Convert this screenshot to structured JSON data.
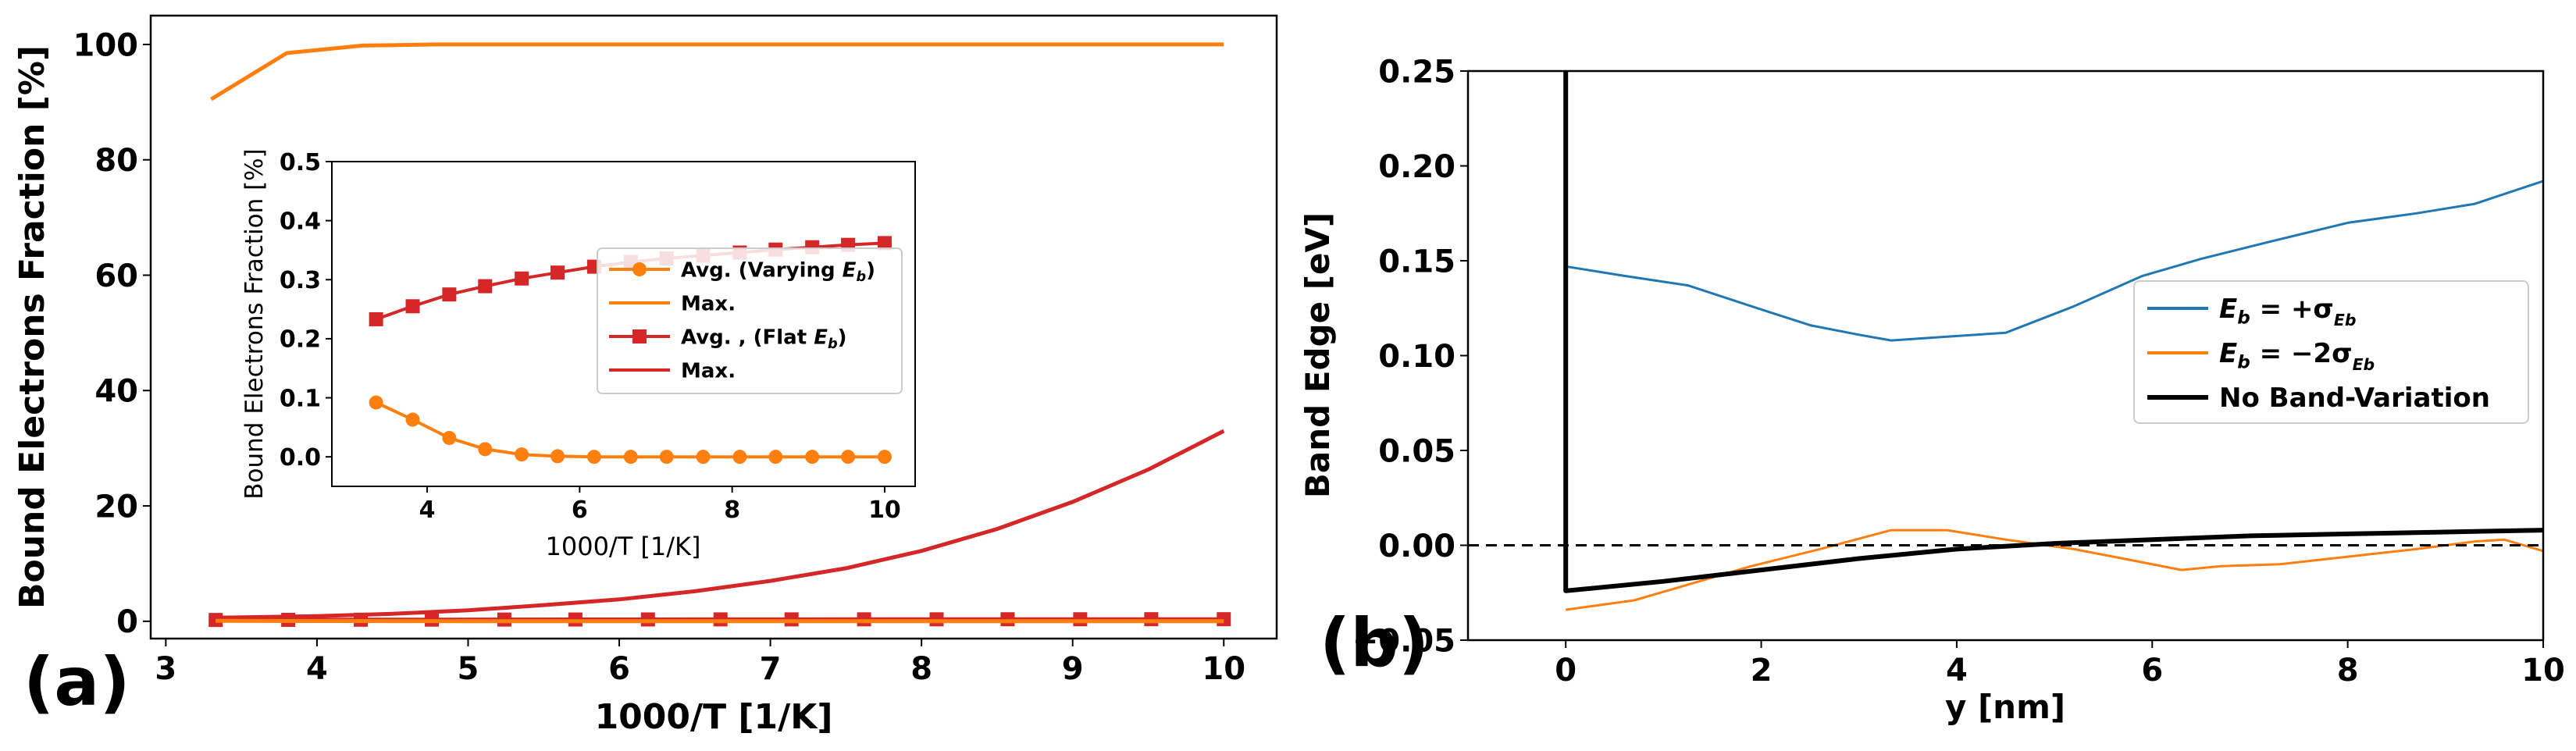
{
  "chart_data": [
    {
      "panel_label": "(a)",
      "type": "line",
      "title": "",
      "xlabel": "1000/T [1/K]",
      "ylabel": "Bound Electrons Fraction [%]",
      "xlim": [
        2.9,
        10.35
      ],
      "ylim": [
        -3,
        105
      ],
      "xticks": [
        "3",
        "4",
        "5",
        "6",
        "7",
        "8",
        "9",
        "10"
      ],
      "yticks": [
        "0",
        "20",
        "40",
        "60",
        "80",
        "100"
      ],
      "colors": {
        "orange": "#ff7f0e",
        "red": "#d62728"
      },
      "series": [
        {
          "name": "Max. (Varying)",
          "color": "#ff7f0e",
          "marker": "none",
          "x": [
            3.3,
            3.8,
            4.3,
            4.8,
            5.3,
            5.8,
            6.3,
            6.8,
            7.3,
            7.8,
            8.3,
            8.8,
            9.3,
            9.8,
            10.0
          ],
          "y": [
            90.5,
            98.5,
            99.8,
            100,
            100,
            100,
            100,
            100,
            100,
            100,
            100,
            100,
            100,
            100,
            100
          ]
        },
        {
          "name": "Max. (Flat)",
          "color": "#d62728",
          "marker": "none",
          "x": [
            3.3,
            4.0,
            4.5,
            5.0,
            5.5,
            6.0,
            6.5,
            7.0,
            7.5,
            8.0,
            8.5,
            9.0,
            9.5,
            10.0
          ],
          "y": [
            0.6,
            0.9,
            1.3,
            1.9,
            2.8,
            3.8,
            5.2,
            7.0,
            9.2,
            12.2,
            16.0,
            20.7,
            26.3,
            33.0
          ]
        },
        {
          "name": "Avg. (Flat)",
          "color": "#d62728",
          "marker": "square",
          "x": [
            3.33,
            3.81,
            4.29,
            4.76,
            5.24,
            5.71,
            6.19,
            6.67,
            7.14,
            7.62,
            8.1,
            8.57,
            9.05,
            9.52,
            10.0
          ],
          "y": [
            0.23,
            0.25,
            0.27,
            0.29,
            0.3,
            0.31,
            0.32,
            0.33,
            0.33,
            0.34,
            0.34,
            0.35,
            0.35,
            0.36,
            0.36
          ]
        },
        {
          "name": "Avg. (Varying)",
          "color": "#ff7f0e",
          "marker": "none",
          "x": [
            3.33,
            4.0,
            5.0,
            6.0,
            7.0,
            8.0,
            9.0,
            10.0
          ],
          "y": [
            0.09,
            0.05,
            0.01,
            0.0,
            0.0,
            0.0,
            0.0,
            0.0
          ]
        }
      ],
      "inset": {
        "type": "line",
        "xlabel": "1000/T [1/K]",
        "ylabel": "Bound Electrons Fraction [%]",
        "xlim": [
          2.75,
          10.4
        ],
        "ylim": [
          -0.05,
          0.5
        ],
        "xticks": [
          "4",
          "6",
          "8",
          "10"
        ],
        "yticks": [
          "0.0",
          "0.1",
          "0.2",
          "0.3",
          "0.4",
          "0.5"
        ],
        "legend_location": "center-right",
        "legend": [
          {
            "label": "Avg.  (Varying ",
            "sym": "E",
            "sub": "b",
            "tail": ")",
            "color": "#ff7f0e",
            "marker": "circle"
          },
          {
            "label": "Max.",
            "sym": "",
            "sub": "",
            "tail": "",
            "color": "#ff7f0e",
            "marker": "none"
          },
          {
            "label": "Avg. , (Flat ",
            "sym": "E",
            "sub": "b",
            "tail": ")",
            "color": "#d62728",
            "marker": "square"
          },
          {
            "label": "Max.",
            "sym": "",
            "sub": "",
            "tail": "",
            "color": "#d62728",
            "marker": "none"
          }
        ],
        "series": [
          {
            "name": "Avg. (Varying Eb)",
            "color": "#ff7f0e",
            "marker": "circle",
            "x": [
              3.33,
              3.81,
              4.29,
              4.76,
              5.24,
              5.71,
              6.19,
              6.67,
              7.14,
              7.62,
              8.1,
              8.57,
              9.05,
              9.52,
              10.0
            ],
            "y": [
              0.092,
              0.063,
              0.032,
              0.013,
              0.004,
              0.001,
              0.0,
              0.0,
              0.0,
              0.0,
              0.0,
              0.0,
              0.0,
              0.0,
              0.0
            ]
          },
          {
            "name": "Avg. (Flat Eb)",
            "color": "#d62728",
            "marker": "square",
            "x": [
              3.33,
              3.81,
              4.29,
              4.76,
              5.24,
              5.71,
              6.19,
              6.67,
              7.14,
              7.62,
              8.1,
              8.57,
              9.05,
              9.52,
              10.0
            ],
            "y": [
              0.233,
              0.255,
              0.275,
              0.289,
              0.302,
              0.312,
              0.322,
              0.33,
              0.336,
              0.341,
              0.346,
              0.351,
              0.355,
              0.359,
              0.362
            ]
          }
        ]
      }
    },
    {
      "panel_label": "(b)",
      "type": "line",
      "title": "",
      "xlabel": "y [nm]",
      "ylabel": "Band Edge [eV]",
      "xlim": [
        -1.0,
        10.0
      ],
      "ylim": [
        -0.05,
        0.25
      ],
      "xticks": [
        "0",
        "2",
        "4",
        "6",
        "8",
        "10"
      ],
      "yticks": [
        "−0.05",
        "0.00",
        "0.05",
        "0.10",
        "0.15",
        "0.20",
        "0.25"
      ],
      "legend_location": "center-right",
      "legend": [
        {
          "label": "",
          "sym": "E",
          "sub": "b",
          "tail": " = +σ",
          "sub2": "Eb",
          "color": "#1f77b4"
        },
        {
          "label": "",
          "sym": "E",
          "sub": "b",
          "tail": " = −2σ",
          "sub2": "Eb",
          "color": "#ff7f0e"
        },
        {
          "label": "No Band-Variation",
          "sym": "",
          "sub": "",
          "tail": "",
          "sub2": "",
          "color": "#000000"
        }
      ],
      "series": [
        {
          "name": "Eb = +sigma",
          "color": "#1f77b4",
          "x": [
            0,
            0.6,
            1.25,
            1.9,
            2.5,
            3.0,
            3.33,
            3.9,
            4.5,
            5.2,
            5.9,
            6.5,
            7.2,
            8.0,
            8.7,
            9.3,
            10.0
          ],
          "y": [
            0.147,
            0.142,
            0.137,
            0.126,
            0.116,
            0.111,
            0.108,
            0.11,
            0.112,
            0.126,
            0.142,
            0.151,
            0.16,
            0.17,
            0.175,
            0.18,
            0.192
          ]
        },
        {
          "name": "Eb = -2sigma",
          "color": "#ff7f0e",
          "x": [
            0,
            0.7,
            1.3,
            1.9,
            2.6,
            3.33,
            3.9,
            4.5,
            5.2,
            5.8,
            6.3,
            6.7,
            7.3,
            8.0,
            8.7,
            9.3,
            9.6,
            10.0
          ],
          "y": [
            -0.034,
            -0.029,
            -0.02,
            -0.011,
            -0.002,
            0.008,
            0.008,
            0.003,
            -0.002,
            -0.008,
            -0.013,
            -0.011,
            -0.01,
            -0.006,
            -0.002,
            0.002,
            0.003,
            -0.003
          ]
        },
        {
          "name": "No Band-Variation",
          "color": "#000000",
          "x": [
            0,
            0,
            1.0,
            2.0,
            3.0,
            4.0,
            5.0,
            6.0,
            7.0,
            8.0,
            9.0,
            10.0
          ],
          "y": [
            0.25,
            -0.024,
            -0.019,
            -0.013,
            -0.007,
            -0.002,
            0.001,
            0.003,
            0.005,
            0.006,
            0.007,
            0.008
          ]
        },
        {
          "name": "zero reference",
          "color": "#000000",
          "dashed": true,
          "x": [
            -1.0,
            10.0
          ],
          "y": [
            0.0,
            0.0
          ]
        }
      ]
    }
  ]
}
